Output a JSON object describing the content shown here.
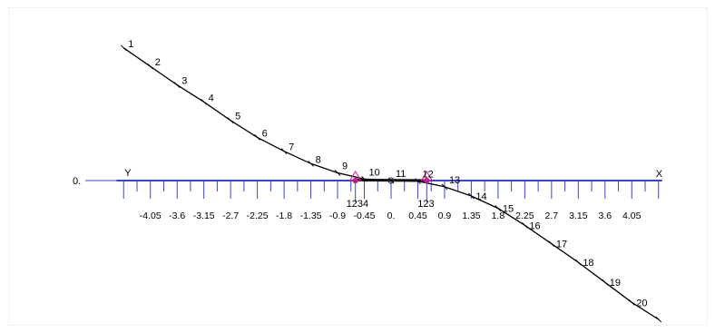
{
  "colors": {
    "axis": "#3a45c8",
    "curve": "#000000",
    "highlight": "#d01c8b",
    "background": "#ffffff"
  },
  "axis": {
    "origin_label": "0.",
    "left_label": "Y",
    "right_label": "X",
    "tick_step": 0.225,
    "tick_range": [
      -4.5,
      4.5
    ],
    "tick_labels": [
      "-4.05",
      "-3.6",
      "-3.15",
      "-2.7",
      "-2.25",
      "-1.8",
      "-1.35",
      "-0.9",
      "-0.45",
      "0.",
      "0.45",
      "0.9",
      "1.35",
      "1.8",
      "2.25",
      "2.7",
      "3.15",
      "3.6",
      "4.05"
    ]
  },
  "points": [
    {
      "label": "1",
      "x": -4.5,
      "y": 4.3
    },
    {
      "label": "2",
      "x": -4.05,
      "y": 3.7
    },
    {
      "label": "3",
      "x": -3.6,
      "y": 3.1
    },
    {
      "label": "4",
      "x": -3.15,
      "y": 2.55
    },
    {
      "label": "5",
      "x": -2.7,
      "y": 1.95
    },
    {
      "label": "6",
      "x": -2.25,
      "y": 1.4
    },
    {
      "label": "7",
      "x": -1.8,
      "y": 0.95
    },
    {
      "label": "8",
      "x": -1.35,
      "y": 0.55
    },
    {
      "label": "9",
      "x": -0.9,
      "y": 0.25
    },
    {
      "label": "10",
      "x": -0.45,
      "y": 0.05
    },
    {
      "label": "11",
      "x": 0.0,
      "y": 0.0
    },
    {
      "label": "12",
      "x": 0.45,
      "y": -0.02
    },
    {
      "label": "13",
      "x": 0.9,
      "y": -0.2
    },
    {
      "label": "14",
      "x": 1.35,
      "y": -0.5
    },
    {
      "label": "15",
      "x": 1.8,
      "y": -0.9
    },
    {
      "label": "16",
      "x": 2.25,
      "y": -1.45
    },
    {
      "label": "17",
      "x": 2.7,
      "y": -2.05
    },
    {
      "label": "18",
      "x": 3.15,
      "y": -2.65
    },
    {
      "label": "19",
      "x": 3.6,
      "y": -3.3
    },
    {
      "label": "20",
      "x": 4.05,
      "y": -3.95
    },
    {
      "label": "",
      "x": 4.5,
      "y": -4.5
    }
  ],
  "supports": [
    {
      "x": -0.6,
      "label": "1234"
    },
    {
      "x": 0.6,
      "label": "123"
    }
  ]
}
